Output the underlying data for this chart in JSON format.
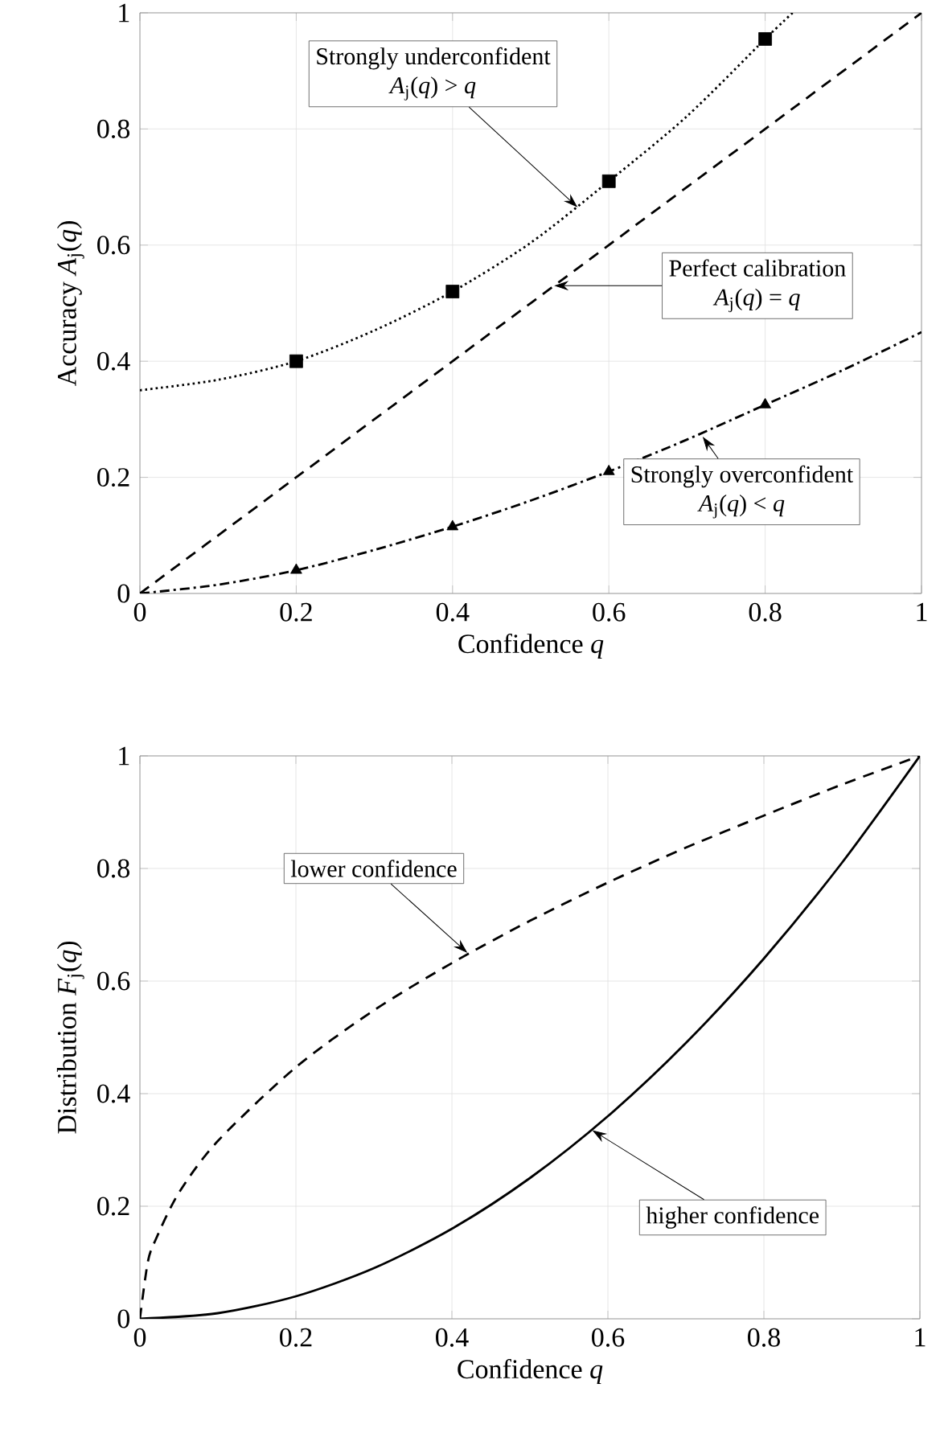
{
  "chart_data": [
    {
      "type": "line",
      "xlabel": "Confidence *q*",
      "ylabel": "Accuracy *A*$_{j}$(*q*)",
      "xlim": [
        0,
        1
      ],
      "ylim": [
        0,
        1
      ],
      "xticks": [
        0,
        0.2,
        0.4,
        0.6,
        0.8,
        1
      ],
      "yticks": [
        0,
        0.2,
        0.4,
        0.6,
        0.8,
        1
      ],
      "grid": true,
      "series": [
        {
          "line_style": "dotted",
          "color": "#000000",
          "x": [
            0,
            0.1,
            0.2,
            0.3,
            0.4,
            0.5,
            0.6,
            0.7,
            0.8,
            0.835
          ],
          "values": [
            0.35,
            0.368,
            0.4,
            0.453,
            0.52,
            0.604,
            0.71,
            0.822,
            0.955,
            1.0
          ]
        },
        {
          "type": "scatter",
          "marker": "square",
          "color": "#000000",
          "x": [
            0.2,
            0.4,
            0.6,
            0.8
          ],
          "values": [
            0.4,
            0.52,
            0.71,
            0.955
          ]
        },
        {
          "line_style": "dashed",
          "color": "#000000",
          "x": [
            0,
            1
          ],
          "values": [
            0,
            1
          ]
        },
        {
          "line_style": "dashdot",
          "color": "#000000",
          "x": [
            0,
            0.1,
            0.2,
            0.3,
            0.4,
            0.5,
            0.6,
            0.7,
            0.8,
            0.9,
            1
          ],
          "values": [
            0,
            0.015,
            0.04,
            0.075,
            0.115,
            0.16,
            0.21,
            0.265,
            0.325,
            0.385,
            0.45
          ]
        },
        {
          "type": "scatter",
          "marker": "triangle",
          "color": "#000000",
          "x": [
            0.2,
            0.4,
            0.6,
            0.8
          ],
          "values": [
            0.04,
            0.115,
            0.21,
            0.325
          ]
        }
      ],
      "annotations": [
        "Strongly underconfident",
        {
          "text": "*A*$_{j}$(*q*) > *q*",
          "x": 0.56,
          "y": 0.665
        },
        {
          "text": "Perfect calibration",
          "x": 0.53,
          "y": 0.53
        },
        "*A*$_{j}$(*q*) = *q*",
        {
          "text": "Strongly overconfident",
          "x": 0.72,
          "y": 0.27
        },
        "*A*$_{j}$(*q*) < *q*"
      ]
    },
    {
      "type": "line",
      "xlabel": "Confidence *q*",
      "ylabel": "Distribution *F*$_{j}$(*q*)",
      "xlim": [
        0,
        1
      ],
      "ylim": [
        0,
        1
      ],
      "xticks": [
        0,
        0.2,
        0.4,
        0.6,
        0.8,
        1
      ],
      "yticks": [
        0,
        0.2,
        0.4,
        0.6,
        0.8,
        1
      ],
      "grid": true,
      "series": [
        {
          "line_style": "dashed",
          "color": "#000000",
          "x": [
            0,
            0.01,
            0.02,
            0.05,
            0.1,
            0.2,
            0.3,
            0.4,
            0.5,
            0.6,
            0.7,
            0.8,
            0.9,
            1
          ],
          "values": [
            0,
            0.1,
            0.14,
            0.224,
            0.316,
            0.447,
            0.548,
            0.632,
            0.707,
            0.775,
            0.837,
            0.894,
            0.949,
            1
          ]
        },
        {
          "line_style": "solid",
          "color": "#000000",
          "x": [
            0,
            0.1,
            0.2,
            0.3,
            0.4,
            0.5,
            0.6,
            0.7,
            0.8,
            0.9,
            1
          ],
          "values": [
            0,
            0.01,
            0.04,
            0.09,
            0.16,
            0.25,
            0.36,
            0.49,
            0.64,
            0.81,
            1
          ]
        }
      ],
      "annotations": [
        {
          "text": "lower confidence",
          "x": 0.42,
          "y": 0.65
        },
        {
          "text": "higher confidence",
          "x": 0.58,
          "y": 0.335
        }
      ]
    }
  ]
}
